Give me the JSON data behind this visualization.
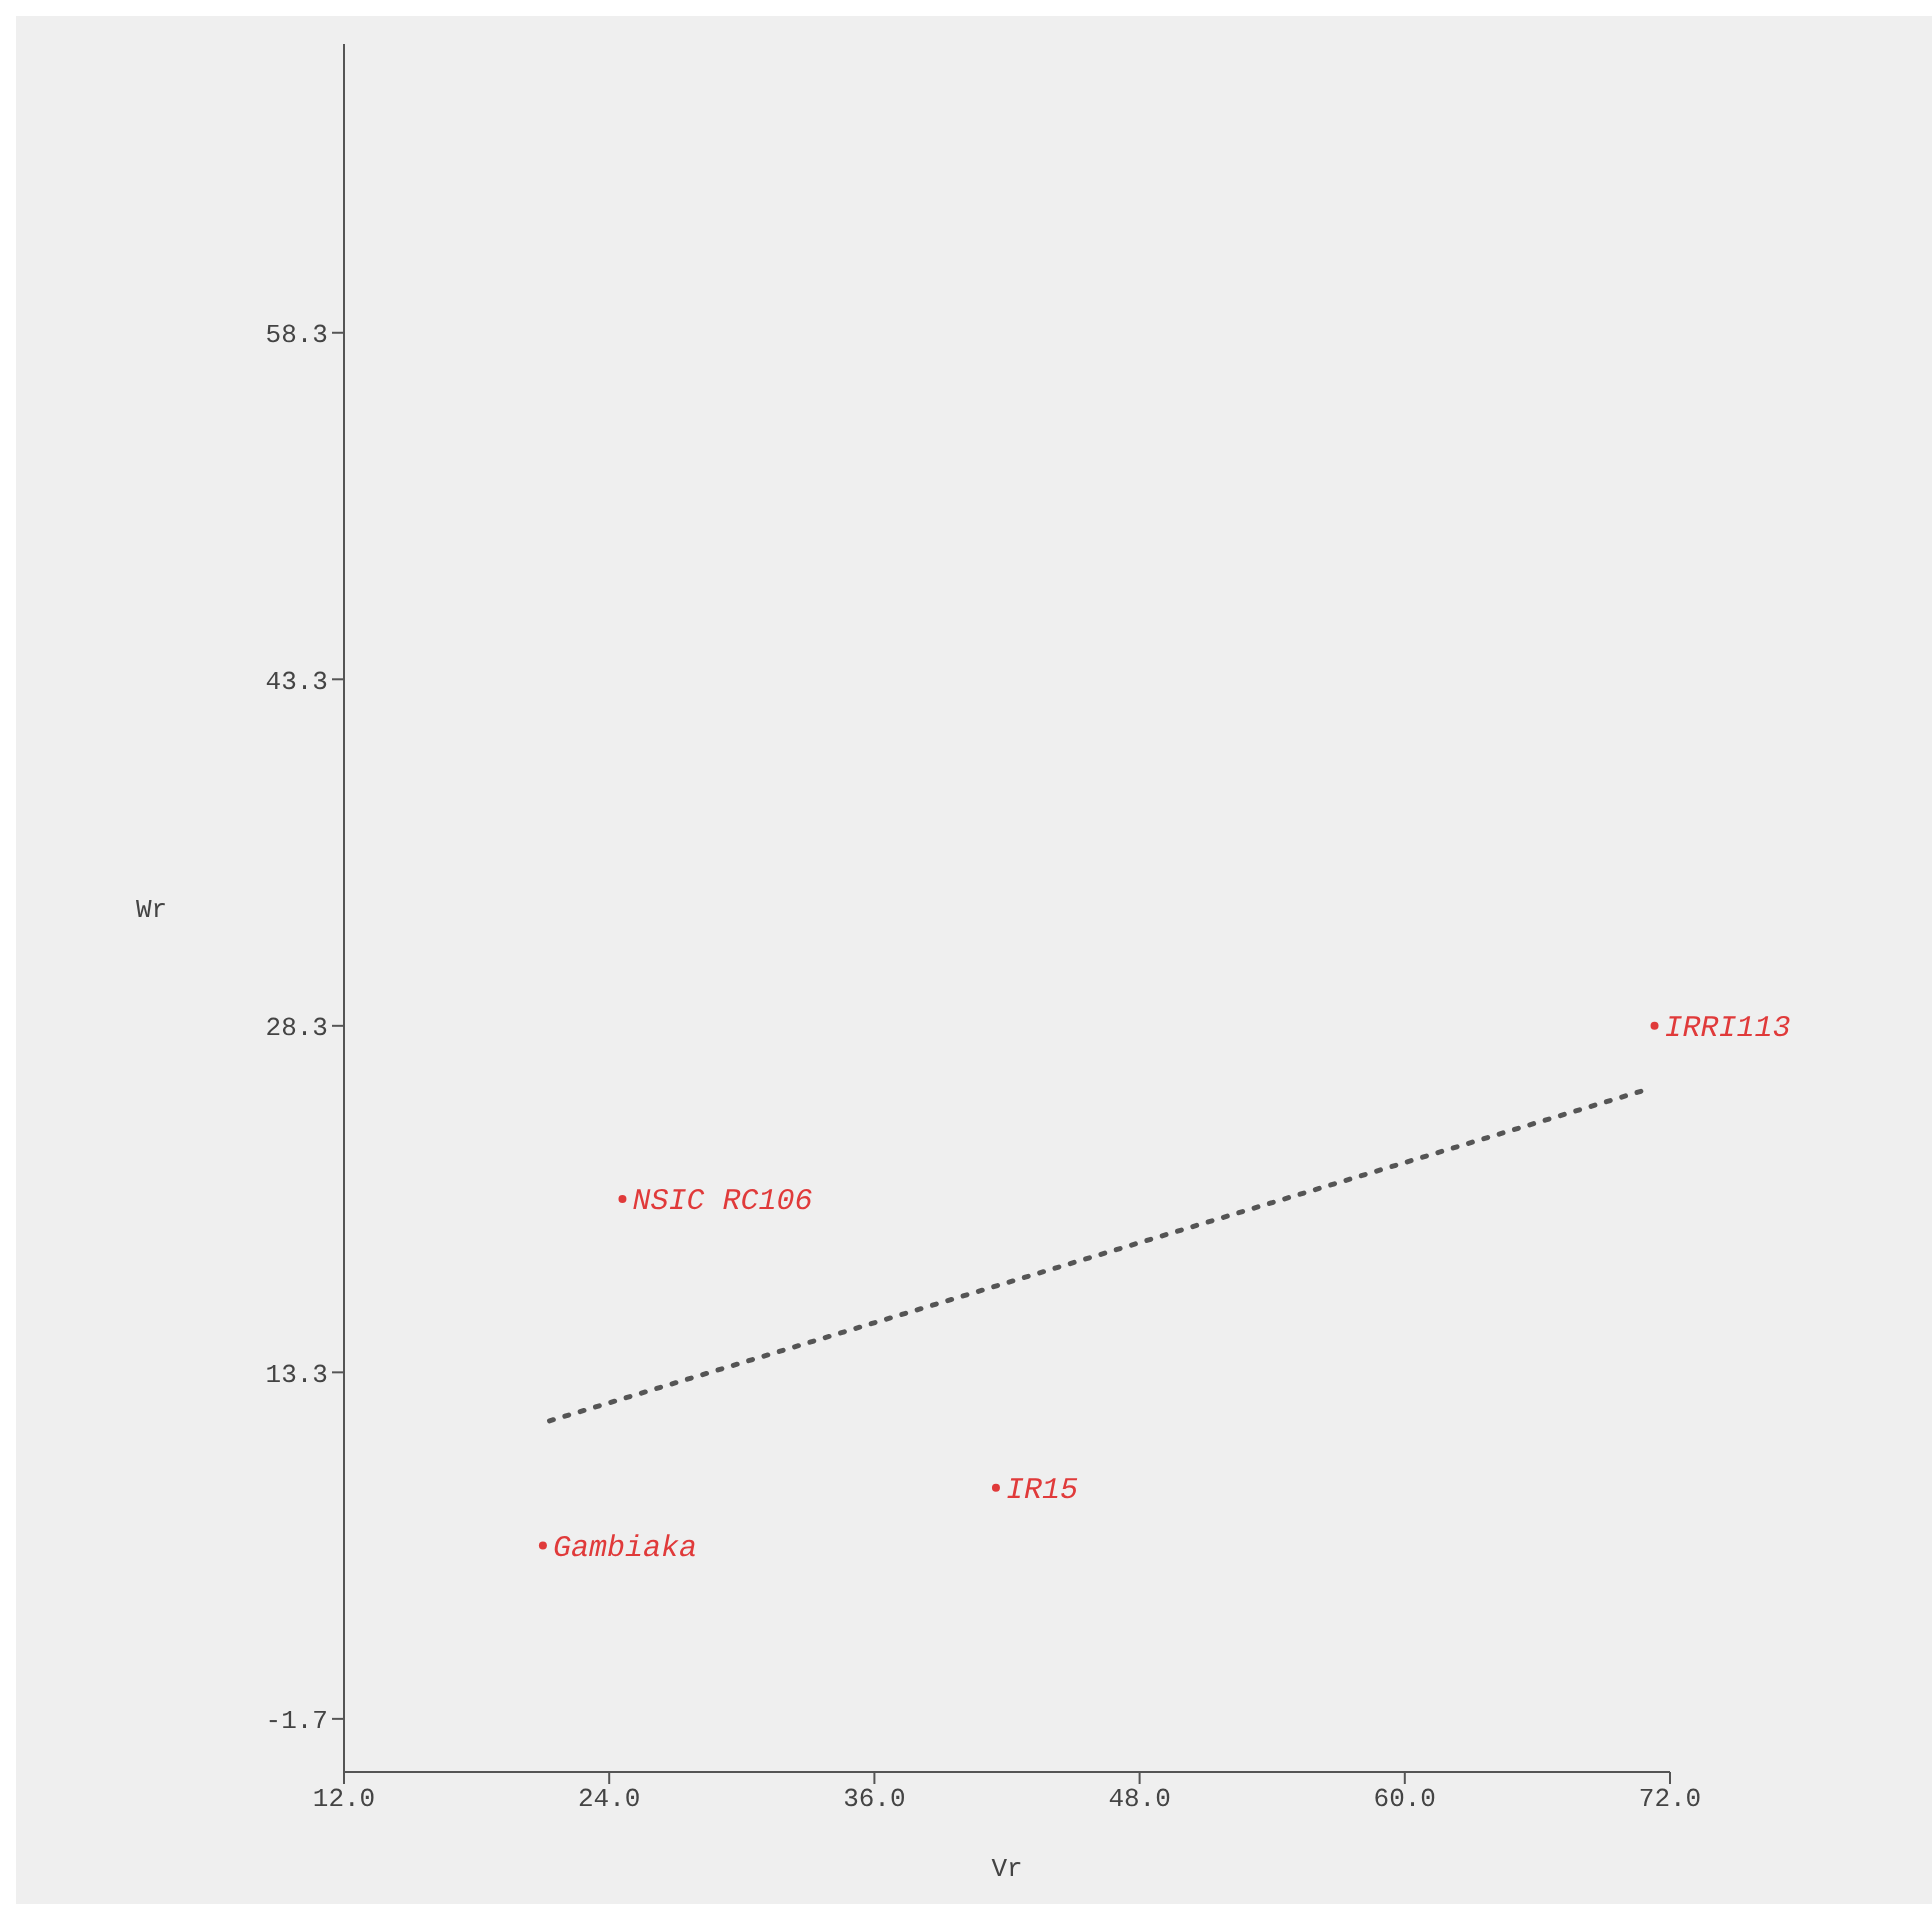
{
  "chart_data": {
    "type": "line",
    "xlabel": "Vr",
    "ylabel": "Wr",
    "series": [
      {
        "color": "#555555",
        "x": [
          21.3,
          70.8
        ],
        "values": [
          11.2,
          25.5
        ],
        "line_style": "dotted"
      },
      {
        "type": "scatter",
        "color": "#e03a3a",
        "marker": "circle",
        "x": [
          71.3,
          24.6,
          41.5,
          21.0
        ],
        "values": [
          28.3,
          20.8,
          8.3,
          5.8
        ],
        "value_labels": [
          "IRRI113",
          "NSIC RC106",
          "IR15",
          "Gambiaka"
        ]
      }
    ],
    "xlim": [
      12,
      72
    ],
    "xticks": [
      {
        "value": 12,
        "label": "12.0"
      },
      {
        "value": 24,
        "label": "24.0"
      },
      {
        "value": 36,
        "label": "36.0"
      },
      {
        "value": 48,
        "label": "48.0"
      },
      {
        "value": 60,
        "label": "60.0"
      },
      {
        "value": 72,
        "label": "72.0"
      }
    ],
    "ylim": [
      -4,
      70.8
    ],
    "yticks": [
      -1.7,
      13.3,
      28.3,
      43.3,
      58.3
    ],
    "grid": false,
    "marker": "none"
  }
}
